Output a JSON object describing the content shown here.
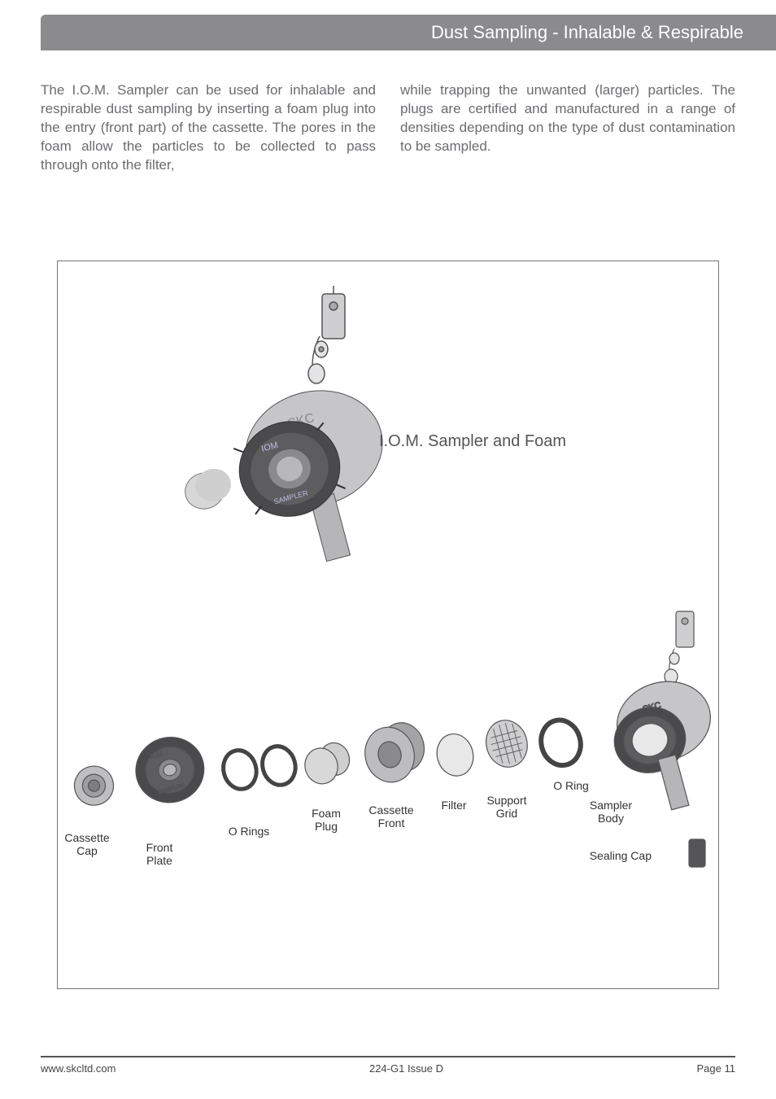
{
  "header": {
    "title": "Dust Sampling - Inhalable & Respirable"
  },
  "paragraphs": {
    "col1": "The I.O.M. Sampler can be used for inhalable and respirable dust sampling by inserting a foam plug into the entry (front part) of the cassette. The pores in the foam allow the particles to be collected to pass through onto the filter,",
    "col2": "while trapping the unwanted (larger) particles. The plugs are certified and manufactured in a range of densities depending on the type of dust contamination to be sampled."
  },
  "diagram": {
    "title": "I.O.M. Sampler and Foam",
    "labels": {
      "cassette_cap": "Cassette\nCap",
      "front_plate": "Front\nPlate",
      "o_rings": "O Rings",
      "foam_plug": "Foam\nPlug",
      "cassette_front": "Cassette\nFront",
      "filter": "Filter",
      "support_grid": "Support\nGrid",
      "o_ring": "O Ring",
      "sampler_body": "Sampler\nBody",
      "sealing_cap": "Sealing Cap"
    },
    "colors": {
      "metal_light": "#c8c8ca",
      "metal_mid": "#9a9a9d",
      "metal_dark": "#5a5a5d",
      "foam": "#d8d8d8",
      "filter": "#e6e6e6",
      "sealing": "#555558",
      "stroke": "#555"
    }
  },
  "footer": {
    "left": "www.skcltd.com",
    "center": "224-G1 Issue D",
    "right": "Page 11"
  }
}
